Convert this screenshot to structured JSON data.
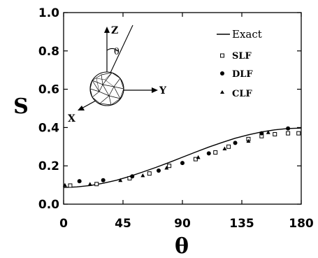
{
  "chart_data": {
    "type": "scatter",
    "xlabel": "θ",
    "ylabel": "S",
    "xlim": [
      0,
      180
    ],
    "ylim": [
      0,
      1.0
    ],
    "xticks": [
      "0",
      "45",
      "90",
      "135",
      "180"
    ],
    "yticks": [
      "0.0",
      "0.2",
      "0.4",
      "0.6",
      "0.8",
      "1.0"
    ],
    "grid": false,
    "legend_position": "top-right",
    "series": [
      {
        "name": "Exact",
        "style": "line",
        "x": [
          0,
          10,
          20,
          30,
          40,
          50,
          60,
          70,
          80,
          90,
          100,
          110,
          120,
          130,
          140,
          150,
          160,
          170,
          180
        ],
        "y": [
          0.087,
          0.09,
          0.097,
          0.109,
          0.125,
          0.145,
          0.168,
          0.192,
          0.218,
          0.245,
          0.272,
          0.298,
          0.322,
          0.344,
          0.362,
          0.377,
          0.388,
          0.395,
          0.397
        ]
      },
      {
        "name": "SLF",
        "style": "open-square",
        "x": [
          5,
          25,
          50,
          65,
          80,
          100,
          115,
          125,
          140,
          150,
          160,
          170,
          178
        ],
        "y": [
          0.097,
          0.105,
          0.135,
          0.16,
          0.2,
          0.235,
          0.27,
          0.3,
          0.34,
          0.355,
          0.365,
          0.37,
          0.37
        ]
      },
      {
        "name": "DLF",
        "style": "filled-circle",
        "x": [
          12,
          30,
          52,
          72,
          90,
          110,
          130,
          150,
          170
        ],
        "y": [
          0.12,
          0.125,
          0.145,
          0.175,
          0.215,
          0.265,
          0.32,
          0.37,
          0.395
        ]
      },
      {
        "name": "CLF",
        "style": "filled-triangle",
        "x": [
          1,
          20,
          43,
          60,
          78,
          102,
          122,
          140,
          155
        ],
        "y": [
          0.1,
          0.105,
          0.125,
          0.15,
          0.19,
          0.245,
          0.29,
          0.33,
          0.375
        ]
      }
    ],
    "inset": {
      "axis_labels": [
        "Z",
        "Y",
        "X"
      ],
      "angle_label": "θ"
    }
  }
}
